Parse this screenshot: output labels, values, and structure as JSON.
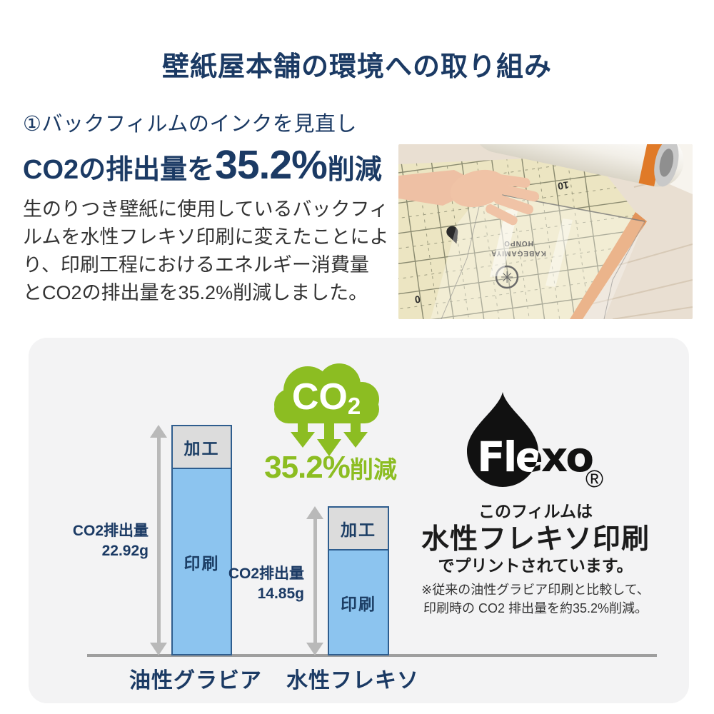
{
  "page_title": "壁紙屋本舗の環境への取り組み",
  "intro": {
    "step_label": "①バックフィルムのインクを見直し",
    "headline": {
      "prefix": "CO2の排出量を",
      "value": "35.2%",
      "suffix": "削減"
    },
    "body_lines": [
      "生のりつき壁紙に使用しているバックフィ",
      "ルムを水性フレキソ印刷に変えたことによ",
      "り、印刷工程におけるエネルギー消費量",
      "とCO2の排出量を35.2%削減しました。"
    ]
  },
  "photo": {
    "printed_markings": {
      "brand_top": "KABEGAMIYA",
      "brand_bottom": "HONPO",
      "num_a": "10",
      "num_b": "0"
    }
  },
  "chart_data": {
    "type": "bar",
    "title": "",
    "categories": [
      "油性グラビア",
      "水性フレキソ"
    ],
    "series": [
      {
        "name": "加工",
        "values": [
          4.25,
          4.25
        ],
        "color": "#dcdcdc"
      },
      {
        "name": "印刷",
        "values": [
          18.67,
          10.6
        ],
        "color": "#8cc4ef"
      }
    ],
    "totals": [
      {
        "label": "CO2排出量",
        "value": "22.92g"
      },
      {
        "label": "CO2排出量",
        "value": "14.85g"
      }
    ],
    "unit": "g",
    "ylabel": "",
    "xlabel": "",
    "legend_position": "none",
    "grid": false,
    "note": "totals are labeled on chart; 加工/印刷 segment split estimated from bar proportions"
  },
  "reduction_badge": {
    "cloud_text": "CO",
    "cloud_sub": "2",
    "value": "35.2%",
    "suffix": "削減"
  },
  "flexo_block": {
    "brand": "Flexo",
    "registered_mark": "®",
    "line1": "このフィルムは",
    "line2": "水性フレキソ印刷",
    "line3": "でプリントされています。",
    "note_line1": "※従来の油性グラビア印刷と比較して、",
    "note_line2": "印刷時の CO2 排出量を約35.2%削減。"
  },
  "colors": {
    "navy": "#1b3a64",
    "green": "#8cbd22",
    "bar_blue": "#8cc4ef",
    "bar_gray": "#dcdcdc",
    "bar_border": "#2e5d8e",
    "panel_bg": "#f3f3f4",
    "arrow_gray": "#b9b9b9",
    "body_text": "#333333"
  }
}
